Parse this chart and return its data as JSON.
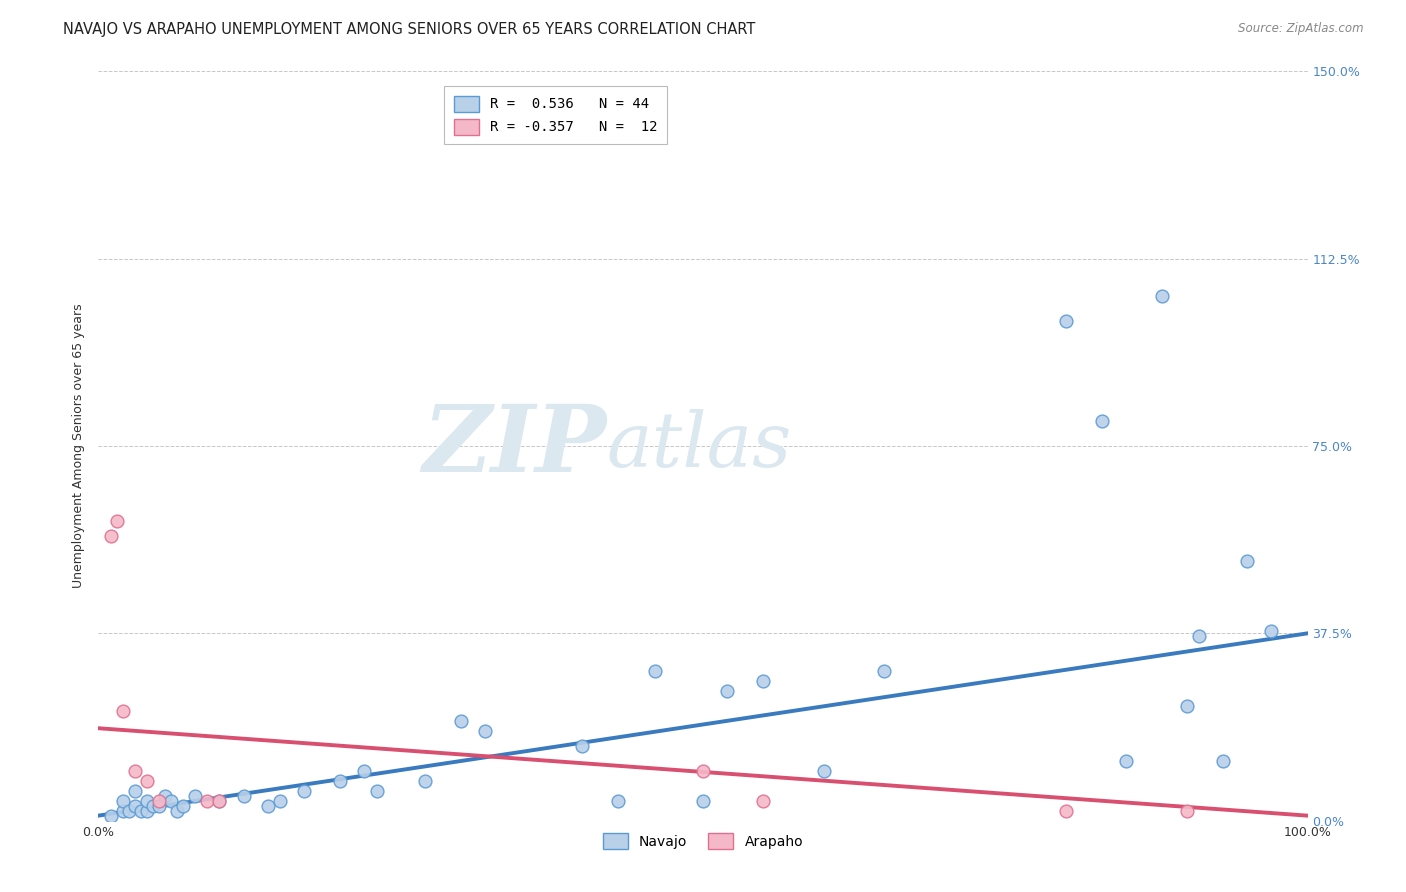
{
  "title": "NAVAJO VS ARAPAHO UNEMPLOYMENT AMONG SENIORS OVER 65 YEARS CORRELATION CHART",
  "source": "Source: ZipAtlas.com",
  "ylabel": "Unemployment Among Seniors over 65 years",
  "watermark_zip": "ZIP",
  "watermark_atlas": "atlas",
  "navajo_R": 0.536,
  "navajo_N": 44,
  "arapaho_R": -0.357,
  "arapaho_N": 12,
  "navajo_color": "#b8d0e8",
  "navajo_edge_color": "#5b9bd5",
  "arapaho_color": "#f5b8c8",
  "arapaho_edge_color": "#e07090",
  "navajo_line_color": "#3a7abf",
  "arapaho_line_color": "#d94f70",
  "background_color": "#ffffff",
  "xlim": [
    0.0,
    1.0
  ],
  "ylim": [
    0.0,
    1.5
  ],
  "ytick_positions": [
    0.0,
    0.375,
    0.75,
    1.125,
    1.5
  ],
  "ytick_labels": [
    "0.0%",
    "37.5%",
    "75.0%",
    "112.5%",
    "150.0%"
  ],
  "xtick_positions": [
    0.0,
    0.5,
    1.0
  ],
  "xtick_labels": [
    "0.0%",
    "",
    "100.0%"
  ],
  "navajo_trend_x0": 0.0,
  "navajo_trend_y0": 0.01,
  "navajo_trend_x1": 1.0,
  "navajo_trend_y1": 0.375,
  "arapaho_trend_x0": 0.0,
  "arapaho_trend_y0": 0.185,
  "arapaho_trend_x1": 1.0,
  "arapaho_trend_y1": 0.01,
  "navajo_x": [
    0.01,
    0.02,
    0.02,
    0.025,
    0.03,
    0.03,
    0.035,
    0.04,
    0.04,
    0.045,
    0.05,
    0.055,
    0.06,
    0.065,
    0.07,
    0.08,
    0.1,
    0.12,
    0.14,
    0.15,
    0.17,
    0.2,
    0.22,
    0.23,
    0.27,
    0.3,
    0.32,
    0.4,
    0.43,
    0.46,
    0.5,
    0.52,
    0.55,
    0.6,
    0.65,
    0.8,
    0.83,
    0.85,
    0.88,
    0.9,
    0.91,
    0.93,
    0.95,
    0.97
  ],
  "navajo_y": [
    0.01,
    0.02,
    0.04,
    0.02,
    0.03,
    0.06,
    0.02,
    0.02,
    0.04,
    0.03,
    0.03,
    0.05,
    0.04,
    0.02,
    0.03,
    0.05,
    0.04,
    0.05,
    0.03,
    0.04,
    0.06,
    0.08,
    0.1,
    0.06,
    0.08,
    0.2,
    0.18,
    0.15,
    0.04,
    0.3,
    0.04,
    0.26,
    0.28,
    0.1,
    0.3,
    1.0,
    0.8,
    0.12,
    1.05,
    0.23,
    0.37,
    0.12,
    0.52,
    0.38
  ],
  "arapaho_x": [
    0.01,
    0.015,
    0.02,
    0.03,
    0.04,
    0.05,
    0.09,
    0.1,
    0.5,
    0.55,
    0.8,
    0.9
  ],
  "arapaho_y": [
    0.57,
    0.6,
    0.22,
    0.1,
    0.08,
    0.04,
    0.04,
    0.04,
    0.1,
    0.04,
    0.02,
    0.02
  ],
  "marker_size": 85,
  "grid_color": "#c8c8c8",
  "grid_style": "--",
  "title_fontsize": 10.5,
  "axis_label_fontsize": 9,
  "tick_fontsize": 9,
  "legend_fontsize": 10,
  "right_tick_color": "#4a86c8",
  "source_color": "#888888",
  "axis_label_color": "#333333"
}
